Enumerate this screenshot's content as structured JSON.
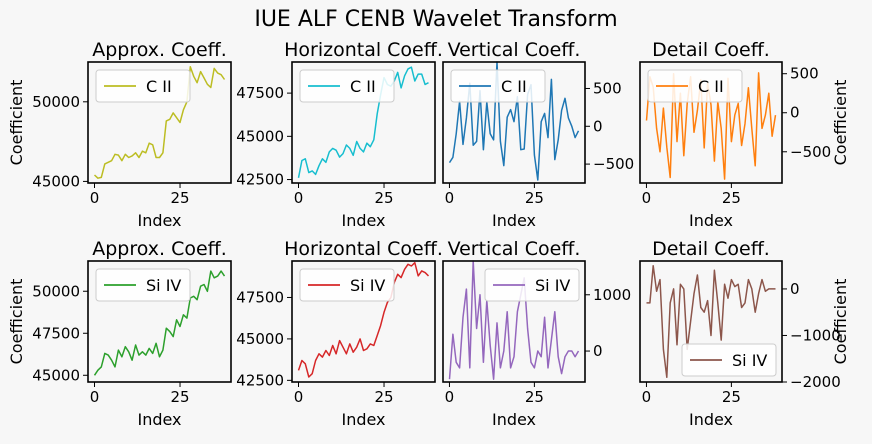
{
  "figure": {
    "title": "IUE ALF CENB Wavelet Transform"
  },
  "colors": {
    "axis": "#000000",
    "legend_border": "#cccccc"
  },
  "chart_data": [
    {
      "type": "line",
      "row": 0,
      "col": 0,
      "title": "Approx. Coeff.",
      "xlabel": "Index",
      "ylabel": "Coefficient",
      "yaxis_side": "left",
      "series": [
        {
          "name": "C II",
          "color": "#bcbd22",
          "x_start": 0,
          "values": [
            45400,
            45200,
            45250,
            46100,
            46200,
            46300,
            46700,
            46650,
            46300,
            46700,
            46500,
            46600,
            46800,
            46500,
            46900,
            46800,
            47400,
            47300,
            46500,
            46500,
            46800,
            48800,
            48900,
            49300,
            49000,
            48700,
            49500,
            50000,
            52200,
            51600,
            51200,
            51900,
            51500,
            51100,
            50900,
            52100,
            51800,
            51700,
            51400
          ],
          "ylim": [
            44900,
            52500
          ],
          "yticks": [
            45000,
            50000
          ]
        }
      ],
      "xlim": [
        -1.9,
        39.9
      ],
      "xticks": [
        0,
        25
      ]
    },
    {
      "type": "line",
      "row": 0,
      "col": 1,
      "title": "Horizontal Coeff.",
      "xlabel": "Index",
      "ylabel": "",
      "yaxis_side": "left",
      "series": [
        {
          "name": "C II",
          "color": "#17becf",
          "x_start": 0,
          "values": [
            42600,
            43600,
            43700,
            42900,
            43000,
            42800,
            43300,
            43700,
            43500,
            44100,
            44300,
            44200,
            43800,
            44000,
            44500,
            44300,
            43900,
            44700,
            44300,
            44100,
            44600,
            44400,
            44800,
            46300,
            47400,
            48400,
            48000,
            47900,
            48200,
            48700,
            47800,
            48500,
            48900,
            49000,
            48200,
            48600,
            48600,
            48000,
            48100
          ],
          "ylim": [
            42300,
            49300
          ],
          "yticks": [
            42500,
            45000,
            47500
          ]
        }
      ],
      "xlim": [
        -1.9,
        39.9
      ],
      "xticks": [
        0,
        25
      ]
    },
    {
      "type": "line",
      "row": 0,
      "col": 2,
      "title": "Vertical Coeff.",
      "xlabel": "Index",
      "ylabel": "",
      "yaxis_side": "right",
      "series": [
        {
          "name": "C II",
          "color": "#1f77b4",
          "x_start": 0,
          "values": [
            -480,
            -410,
            -100,
            330,
            -240,
            110,
            570,
            -250,
            -200,
            470,
            -310,
            320,
            -100,
            -180,
            850,
            -200,
            -520,
            120,
            220,
            60,
            390,
            -310,
            -300,
            420,
            550,
            -380,
            -710,
            60,
            170,
            -150,
            620,
            -440,
            -180,
            210,
            370,
            110,
            0,
            -150,
            -60
          ],
          "ylim": [
            -750,
            850
          ],
          "yticks": [
            -500,
            0,
            500
          ]
        }
      ],
      "xlim": [
        -1.9,
        39.9
      ],
      "xticks": [
        0,
        25
      ]
    },
    {
      "type": "line",
      "row": 0,
      "col": 3,
      "title": "Detail Coeff.",
      "xlabel": "Index",
      "ylabel": "Coefficient",
      "yaxis_side": "right",
      "series": [
        {
          "name": "C II",
          "color": "#ff7f0e",
          "x_start": 0,
          "values": [
            -100,
            460,
            330,
            -200,
            -500,
            60,
            -440,
            -830,
            500,
            -370,
            250,
            -550,
            120,
            460,
            -250,
            30,
            420,
            -450,
            380,
            100,
            -620,
            140,
            -200,
            -850,
            440,
            -370,
            -30,
            120,
            -420,
            -140,
            320,
            -200,
            -680,
            510,
            -200,
            -30,
            250,
            -300,
            -30
          ],
          "ylim": [
            -900,
            650
          ],
          "yticks": [
            -500,
            0,
            500
          ]
        }
      ],
      "xlim": [
        -1.9,
        39.9
      ],
      "xticks": [
        0,
        25
      ]
    },
    {
      "type": "line",
      "row": 1,
      "col": 0,
      "title": "Approx. Coeff.",
      "xlabel": "Index",
      "ylabel": "Coefficient",
      "yaxis_side": "left",
      "series": [
        {
          "name": "Si IV",
          "color": "#2ca02c",
          "x_start": 0,
          "values": [
            45000,
            45300,
            45500,
            46300,
            46200,
            45900,
            45500,
            46500,
            46100,
            46700,
            46400,
            45900,
            46800,
            46200,
            46400,
            46200,
            46600,
            46300,
            46900,
            46100,
            46500,
            47800,
            47600,
            47300,
            48300,
            47900,
            48600,
            48400,
            49600,
            49700,
            49500,
            50300,
            50400,
            50000,
            51200,
            50800,
            50900,
            51200,
            50900
          ],
          "ylim": [
            44600,
            51800
          ],
          "yticks": [
            45000,
            47500,
            50000
          ]
        }
      ],
      "xlim": [
        -1.9,
        39.9
      ],
      "xticks": [
        0,
        25
      ]
    },
    {
      "type": "line",
      "row": 1,
      "col": 1,
      "title": "Horizontal Coeff.",
      "xlabel": "Index",
      "ylabel": "",
      "yaxis_side": "left",
      "series": [
        {
          "name": "Si IV",
          "color": "#d62728",
          "x_start": 0,
          "values": [
            43100,
            43700,
            43500,
            42700,
            42900,
            43700,
            44100,
            43900,
            44300,
            44000,
            44600,
            44100,
            44900,
            44500,
            44100,
            44700,
            44200,
            44500,
            45000,
            44300,
            44400,
            44700,
            44600,
            45200,
            45800,
            46600,
            47200,
            47500,
            48400,
            48900,
            48700,
            49200,
            49500,
            49400,
            49600,
            48800,
            49100,
            49000,
            48800
          ],
          "ylim": [
            42400,
            49700
          ],
          "yticks": [
            42500,
            45000,
            47500
          ]
        }
      ],
      "xlim": [
        -1.9,
        39.9
      ],
      "xticks": [
        0,
        25
      ]
    },
    {
      "type": "line",
      "row": 1,
      "col": 2,
      "title": "Vertical Coeff.",
      "xlabel": "Index",
      "ylabel": "",
      "yaxis_side": "right",
      "series": [
        {
          "name": "Si IV",
          "color": "#9467bd",
          "x_start": 0,
          "values": [
            -500,
            300,
            -200,
            -300,
            600,
            1100,
            -300,
            1600,
            400,
            1000,
            -200,
            900,
            100,
            -500,
            500,
            -300,
            0,
            700,
            -300,
            -100,
            700,
            1000,
            1300,
            400,
            -200,
            -300,
            0,
            -100,
            600,
            -300,
            200,
            700,
            -100,
            -400,
            -100,
            0,
            0,
            -100,
            0
          ],
          "ylim": [
            -550,
            1600
          ],
          "yticks": [
            0,
            1000
          ]
        }
      ],
      "xlim": [
        -1.9,
        39.9
      ],
      "xticks": [
        0,
        25
      ]
    },
    {
      "type": "line",
      "row": 1,
      "col": 3,
      "title": "Detail Coeff.",
      "xlabel": "Index",
      "ylabel": "Coefficient",
      "yaxis_side": "right",
      "series": [
        {
          "name": "Si IV",
          "color": "#8c564b",
          "x_start": 0,
          "values": [
            -300,
            -300,
            500,
            -50,
            200,
            -1300,
            -1900,
            -300,
            0,
            -1200,
            100,
            0,
            -1300,
            -700,
            -100,
            300,
            -400,
            -500,
            -250,
            -1000,
            400,
            -300,
            -1100,
            100,
            -200,
            200,
            50,
            100,
            -400,
            -300,
            200,
            0,
            -500,
            -100,
            200,
            -50,
            0,
            0,
            0
          ],
          "ylim": [
            -2000,
            600
          ],
          "yticks": [
            -2000,
            -1000,
            0
          ]
        }
      ],
      "xlim": [
        -1.9,
        39.9
      ],
      "xticks": [
        0,
        25
      ]
    }
  ]
}
